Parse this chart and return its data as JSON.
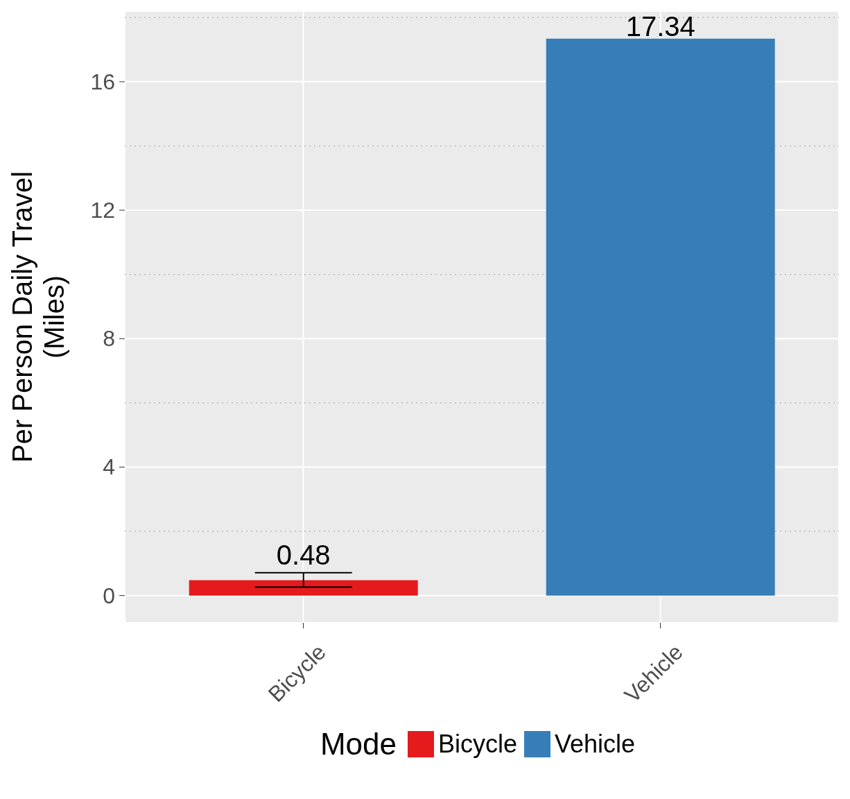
{
  "chart_data": {
    "type": "bar",
    "ylabel": "Per Person Daily Travel\n(Miles)",
    "legend_title": "Mode",
    "categories": [
      "Bicycle",
      "Vehicle"
    ],
    "series": [
      {
        "name": "Bicycle",
        "color": "#e41a1c",
        "values": [
          0.48,
          null
        ],
        "errors": [
          [
            0.26,
            0.71
          ],
          null
        ]
      },
      {
        "name": "Vehicle",
        "color": "#377eb8",
        "values": [
          null,
          17.34
        ]
      }
    ],
    "stacked": true,
    "data_labels": true,
    "ylim": [
      -0.85,
      18.2
    ],
    "yticks": [
      0,
      {
        "value": 2,
        "label": null
      },
      4,
      {
        "value": 6,
        "label": null
      },
      8,
      {
        "value": 10,
        "label": null
      },
      12,
      {
        "value": 14,
        "label": null
      },
      16,
      {
        "value": 18,
        "label": null
      }
    ],
    "grid": true,
    "legend": "bottom"
  }
}
